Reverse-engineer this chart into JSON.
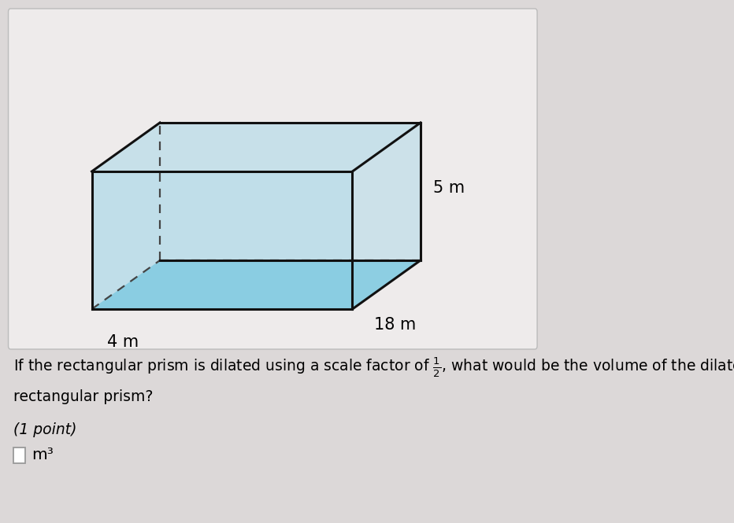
{
  "bg_color": "#dcd8d8",
  "card_bg": "#eeebeb",
  "card_edge": "#bbbbbb",
  "prism_fill_color": "#a8d8e8",
  "prism_fill_alpha": 0.65,
  "prism_edge_color": "#111111",
  "prism_edge_width": 2.2,
  "dashed_color": "#444444",
  "dashed_lw": 1.6,
  "dim_4m_label": "4 m",
  "dim_18m_label": "18 m",
  "dim_5m_label": "5 m",
  "question_line1": "If the rectangular prism is dilated using a scale factor of ",
  "question_line1b": ", what would be the volume of the dilated",
  "question_line2": "rectangular prism?",
  "point_text": "(1 point)",
  "answer_unit": "m³",
  "label_fontsize": 15,
  "question_fontsize": 13.5
}
